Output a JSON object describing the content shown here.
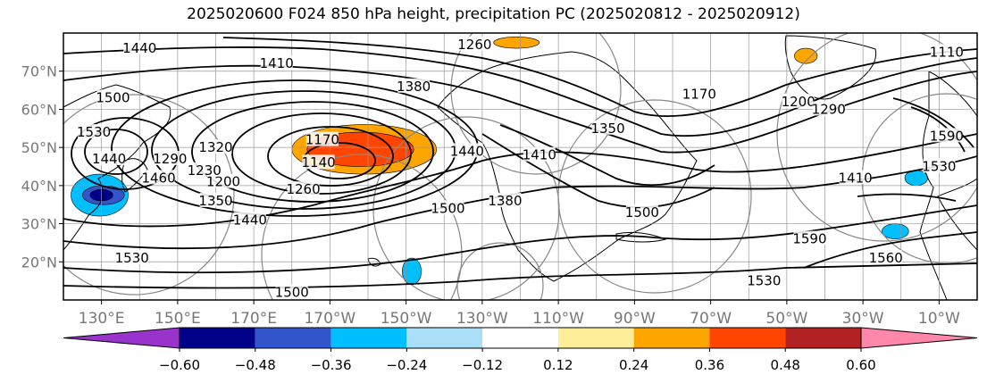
{
  "title": "2025020600 F024 850 hPa height, precipitation PC (2025020812 - 2025020912)",
  "map": {
    "type": "contour-map",
    "projection": "equirectangular",
    "lon_range": [
      120,
      360
    ],
    "lat_range": [
      10,
      80
    ],
    "lat_ticks": [
      {
        "label": "20°N",
        "lat": 20
      },
      {
        "label": "30°N",
        "lat": 30
      },
      {
        "label": "40°N",
        "lat": 40
      },
      {
        "label": "50°N",
        "lat": 50
      },
      {
        "label": "60°N",
        "lat": 60
      },
      {
        "label": "70°N",
        "lat": 70
      }
    ],
    "lon_ticks": [
      {
        "label": "130°E",
        "lon": 130
      },
      {
        "label": "150°E",
        "lon": 150
      },
      {
        "label": "170°E",
        "lon": 170
      },
      {
        "label": "170°W",
        "lon": 190
      },
      {
        "label": "150°W",
        "lon": 210
      },
      {
        "label": "130°W",
        "lon": 230
      },
      {
        "label": "110°W",
        "lon": 250
      },
      {
        "label": "90°W",
        "lon": 270
      },
      {
        "label": "70°W",
        "lon": 290
      },
      {
        "label": "50°W",
        "lon": 310
      },
      {
        "label": "30°W",
        "lon": 330
      },
      {
        "label": "10°W",
        "lon": 350
      }
    ],
    "grid": true,
    "height_contour_labels": [
      {
        "text": "1440",
        "lon": 140,
        "lat": 76
      },
      {
        "text": "1410",
        "lon": 176,
        "lat": 72
      },
      {
        "text": "1260",
        "lon": 228,
        "lat": 77
      },
      {
        "text": "1380",
        "lon": 212,
        "lat": 66
      },
      {
        "text": "1170",
        "lon": 287,
        "lat": 64
      },
      {
        "text": "1200",
        "lon": 313,
        "lat": 62
      },
      {
        "text": "1110",
        "lon": 352,
        "lat": 75
      },
      {
        "text": "1500",
        "lon": 133,
        "lat": 63
      },
      {
        "text": "1530",
        "lon": 128,
        "lat": 54
      },
      {
        "text": "1440",
        "lon": 132,
        "lat": 47
      },
      {
        "text": "1290",
        "lon": 148,
        "lat": 47
      },
      {
        "text": "1320",
        "lon": 160,
        "lat": 50
      },
      {
        "text": "1170",
        "lon": 188,
        "lat": 52
      },
      {
        "text": "1140",
        "lon": 187,
        "lat": 46
      },
      {
        "text": "1200",
        "lon": 162,
        "lat": 41
      },
      {
        "text": "1230",
        "lon": 157,
        "lat": 44
      },
      {
        "text": "1260",
        "lon": 183,
        "lat": 39
      },
      {
        "text": "1350",
        "lon": 160,
        "lat": 36
      },
      {
        "text": "1460",
        "lon": 145,
        "lat": 42
      },
      {
        "text": "1440",
        "lon": 169,
        "lat": 31
      },
      {
        "text": "1530",
        "lon": 138,
        "lat": 21
      },
      {
        "text": "1500",
        "lon": 180,
        "lat": 12
      },
      {
        "text": "1440",
        "lon": 226,
        "lat": 49
      },
      {
        "text": "1500",
        "lon": 221,
        "lat": 34
      },
      {
        "text": "1380",
        "lon": 236,
        "lat": 36
      },
      {
        "text": "1410",
        "lon": 245,
        "lat": 48
      },
      {
        "text": "1350",
        "lon": 263,
        "lat": 55
      },
      {
        "text": "1500",
        "lon": 272,
        "lat": 33
      },
      {
        "text": "1590",
        "lon": 316,
        "lat": 26
      },
      {
        "text": "1560",
        "lon": 336,
        "lat": 21
      },
      {
        "text": "1530",
        "lon": 304,
        "lat": 15
      },
      {
        "text": "1530",
        "lon": 350,
        "lat": 45
      },
      {
        "text": "1590",
        "lon": 352,
        "lat": 53
      },
      {
        "text": "1290",
        "lon": 321,
        "lat": 60
      },
      {
        "text": "1410",
        "lon": 328,
        "lat": 42
      }
    ],
    "precip_anomaly_regions": [
      {
        "category": "0.24 to 0.36",
        "lon": [
          180,
          218
        ],
        "lat": [
          43,
          56
        ]
      },
      {
        "category": "0.36 to 0.48",
        "lon": [
          184,
          212
        ],
        "lat": [
          45,
          54
        ]
      },
      {
        "category": "0.24 to 0.36",
        "lon": [
          312,
          318
        ],
        "lat": [
          72,
          76
        ]
      },
      {
        "category": "0.24 to 0.36",
        "lon": [
          233,
          245
        ],
        "lat": [
          76,
          79
        ]
      },
      {
        "category": "-0.36 to -0.24",
        "lon": [
          122,
          137
        ],
        "lat": [
          32,
          43
        ]
      },
      {
        "category": "-0.48 to -0.36",
        "lon": [
          125,
          136
        ],
        "lat": [
          35,
          40
        ]
      },
      {
        "category": "-0.60 to -0.48",
        "lon": [
          127,
          133
        ],
        "lat": [
          36,
          39
        ]
      },
      {
        "category": "-0.36 to -0.24",
        "lon": [
          209,
          214
        ],
        "lat": [
          14,
          21
        ]
      },
      {
        "category": "-0.36 to -0.24",
        "lon": [
          341,
          347
        ],
        "lat": [
          40,
          44
        ]
      },
      {
        "category": "-0.36 to -0.24",
        "lon": [
          335,
          342
        ],
        "lat": [
          26,
          30
        ]
      }
    ]
  },
  "colorbar": {
    "colors": [
      "#9933cc",
      "#000088",
      "#3355cc",
      "#00bfff",
      "#aadff7",
      "#ffffff",
      "#ffee99",
      "#ffa500",
      "#ff4500",
      "#b22222",
      "#ff88aa"
    ],
    "tick_labels": [
      "−0.60",
      "−0.48",
      "−0.36",
      "−0.24",
      "−0.12",
      "0.12",
      "0.24",
      "0.36",
      "0.48",
      "0.60"
    ]
  }
}
